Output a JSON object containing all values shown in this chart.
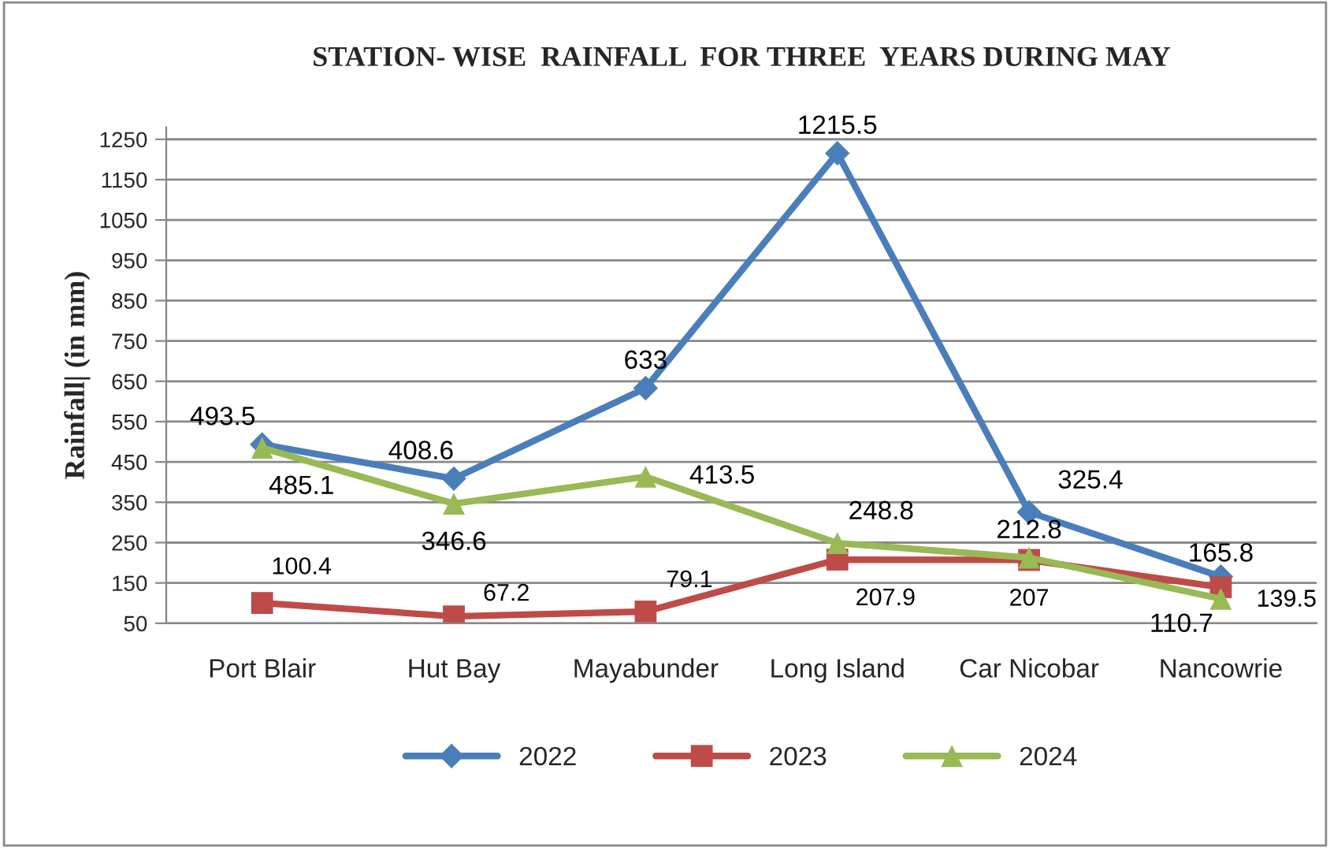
{
  "chart_data": {
    "type": "line",
    "title": "STATION- WISE  RAINFALL  FOR THREE  YEARS DURING MAY",
    "ylabel": "Rainfall| (in mm)",
    "categories": [
      "Port Blair",
      "Hut Bay",
      "Mayabunder",
      "Long Island",
      "Car Nicobar",
      "Nancowrie"
    ],
    "series": [
      {
        "name": "2022",
        "color": "#4a7ebb",
        "marker": "diamond",
        "values": [
          493.5,
          408.6,
          633,
          1215.5,
          325.4,
          165.8
        ]
      },
      {
        "name": "2023",
        "color": "#be4b48",
        "marker": "square",
        "values": [
          100.4,
          67.2,
          79.1,
          207.9,
          207,
          139.5
        ]
      },
      {
        "name": "2024",
        "color": "#98b954",
        "marker": "triangle",
        "values": [
          485.1,
          346.6,
          413.5,
          248.8,
          212.8,
          110.7
        ]
      }
    ],
    "ylim": [
      50,
      1280
    ],
    "yticks": [
      50,
      150,
      250,
      350,
      450,
      550,
      650,
      750,
      850,
      950,
      1050,
      1150,
      1250
    ],
    "grid": "y",
    "legend": "bottom",
    "data_labels": true,
    "line_style": "solid"
  }
}
